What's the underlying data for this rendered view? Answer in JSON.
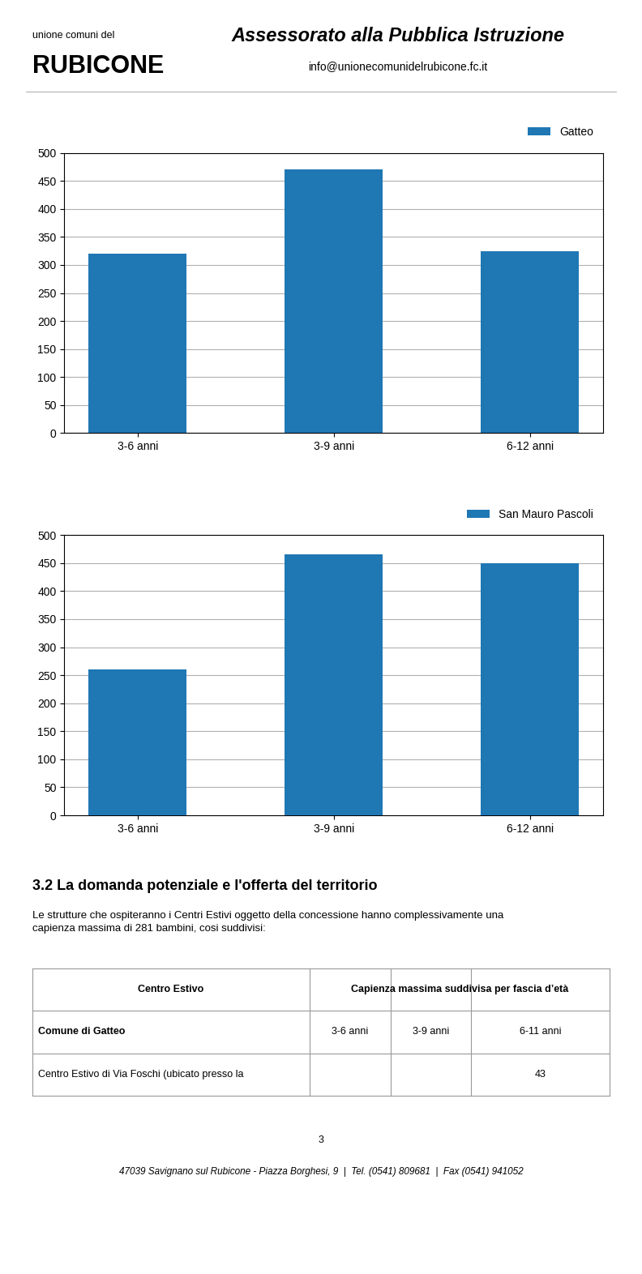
{
  "title": "Assessorato alla Pubblica Istruzione",
  "subtitle": "info@unionecomunidelrubicone.fc.it",
  "annotations": [
    "unione comuni del",
    "RUBICONE",
    "3.2 La domanda potenziale e l'offerta del territorio",
    "Le strutture che ospiteranno i Centri Estivi oggetto della concessione hanno complessivamente una\ncapienza massima di 281 bambini, cosi suddivisi:",
    "3",
    "47039 Savignano sul Rubicone - Piazza Borghesi, 9  |  Tel. (0541) 809681  |  Fax (0541) 941052"
  ],
  "table": {
    "header": [
      "Centro Estivo",
      "Capienza massima suddivisa per fascia d’età"
    ],
    "rows": [
      [
        "Comune di Gatteo",
        "3-6 anni",
        "3-9 anni",
        "6-11 anni"
      ],
      [
        "Centro Estivo di Via Foschi (ubicato presso la",
        null,
        null,
        43
      ]
    ]
  },
  "chart_data": [
    {
      "type": "bar",
      "categories": [
        "3-6 anni",
        "3-9 anni",
        "6-12 anni"
      ],
      "series": [
        {
          "name": "Gatteo",
          "values": [
            320,
            470,
            325
          ]
        }
      ],
      "ylim": [
        0,
        500
      ],
      "yticks": [
        0,
        50,
        100,
        150,
        200,
        250,
        300,
        350,
        400,
        450,
        500
      ],
      "grid": true,
      "legend": "upper right"
    },
    {
      "type": "bar",
      "categories": [
        "3-6 anni",
        "3-9 anni",
        "6-12 anni"
      ],
      "series": [
        {
          "name": "San Mauro Pascoli",
          "values": [
            260,
            465,
            450
          ]
        }
      ],
      "ylim": [
        0,
        500
      ],
      "yticks": [
        0,
        50,
        100,
        150,
        200,
        250,
        300,
        350,
        400,
        450,
        500
      ],
      "grid": true,
      "legend": "upper right"
    }
  ]
}
